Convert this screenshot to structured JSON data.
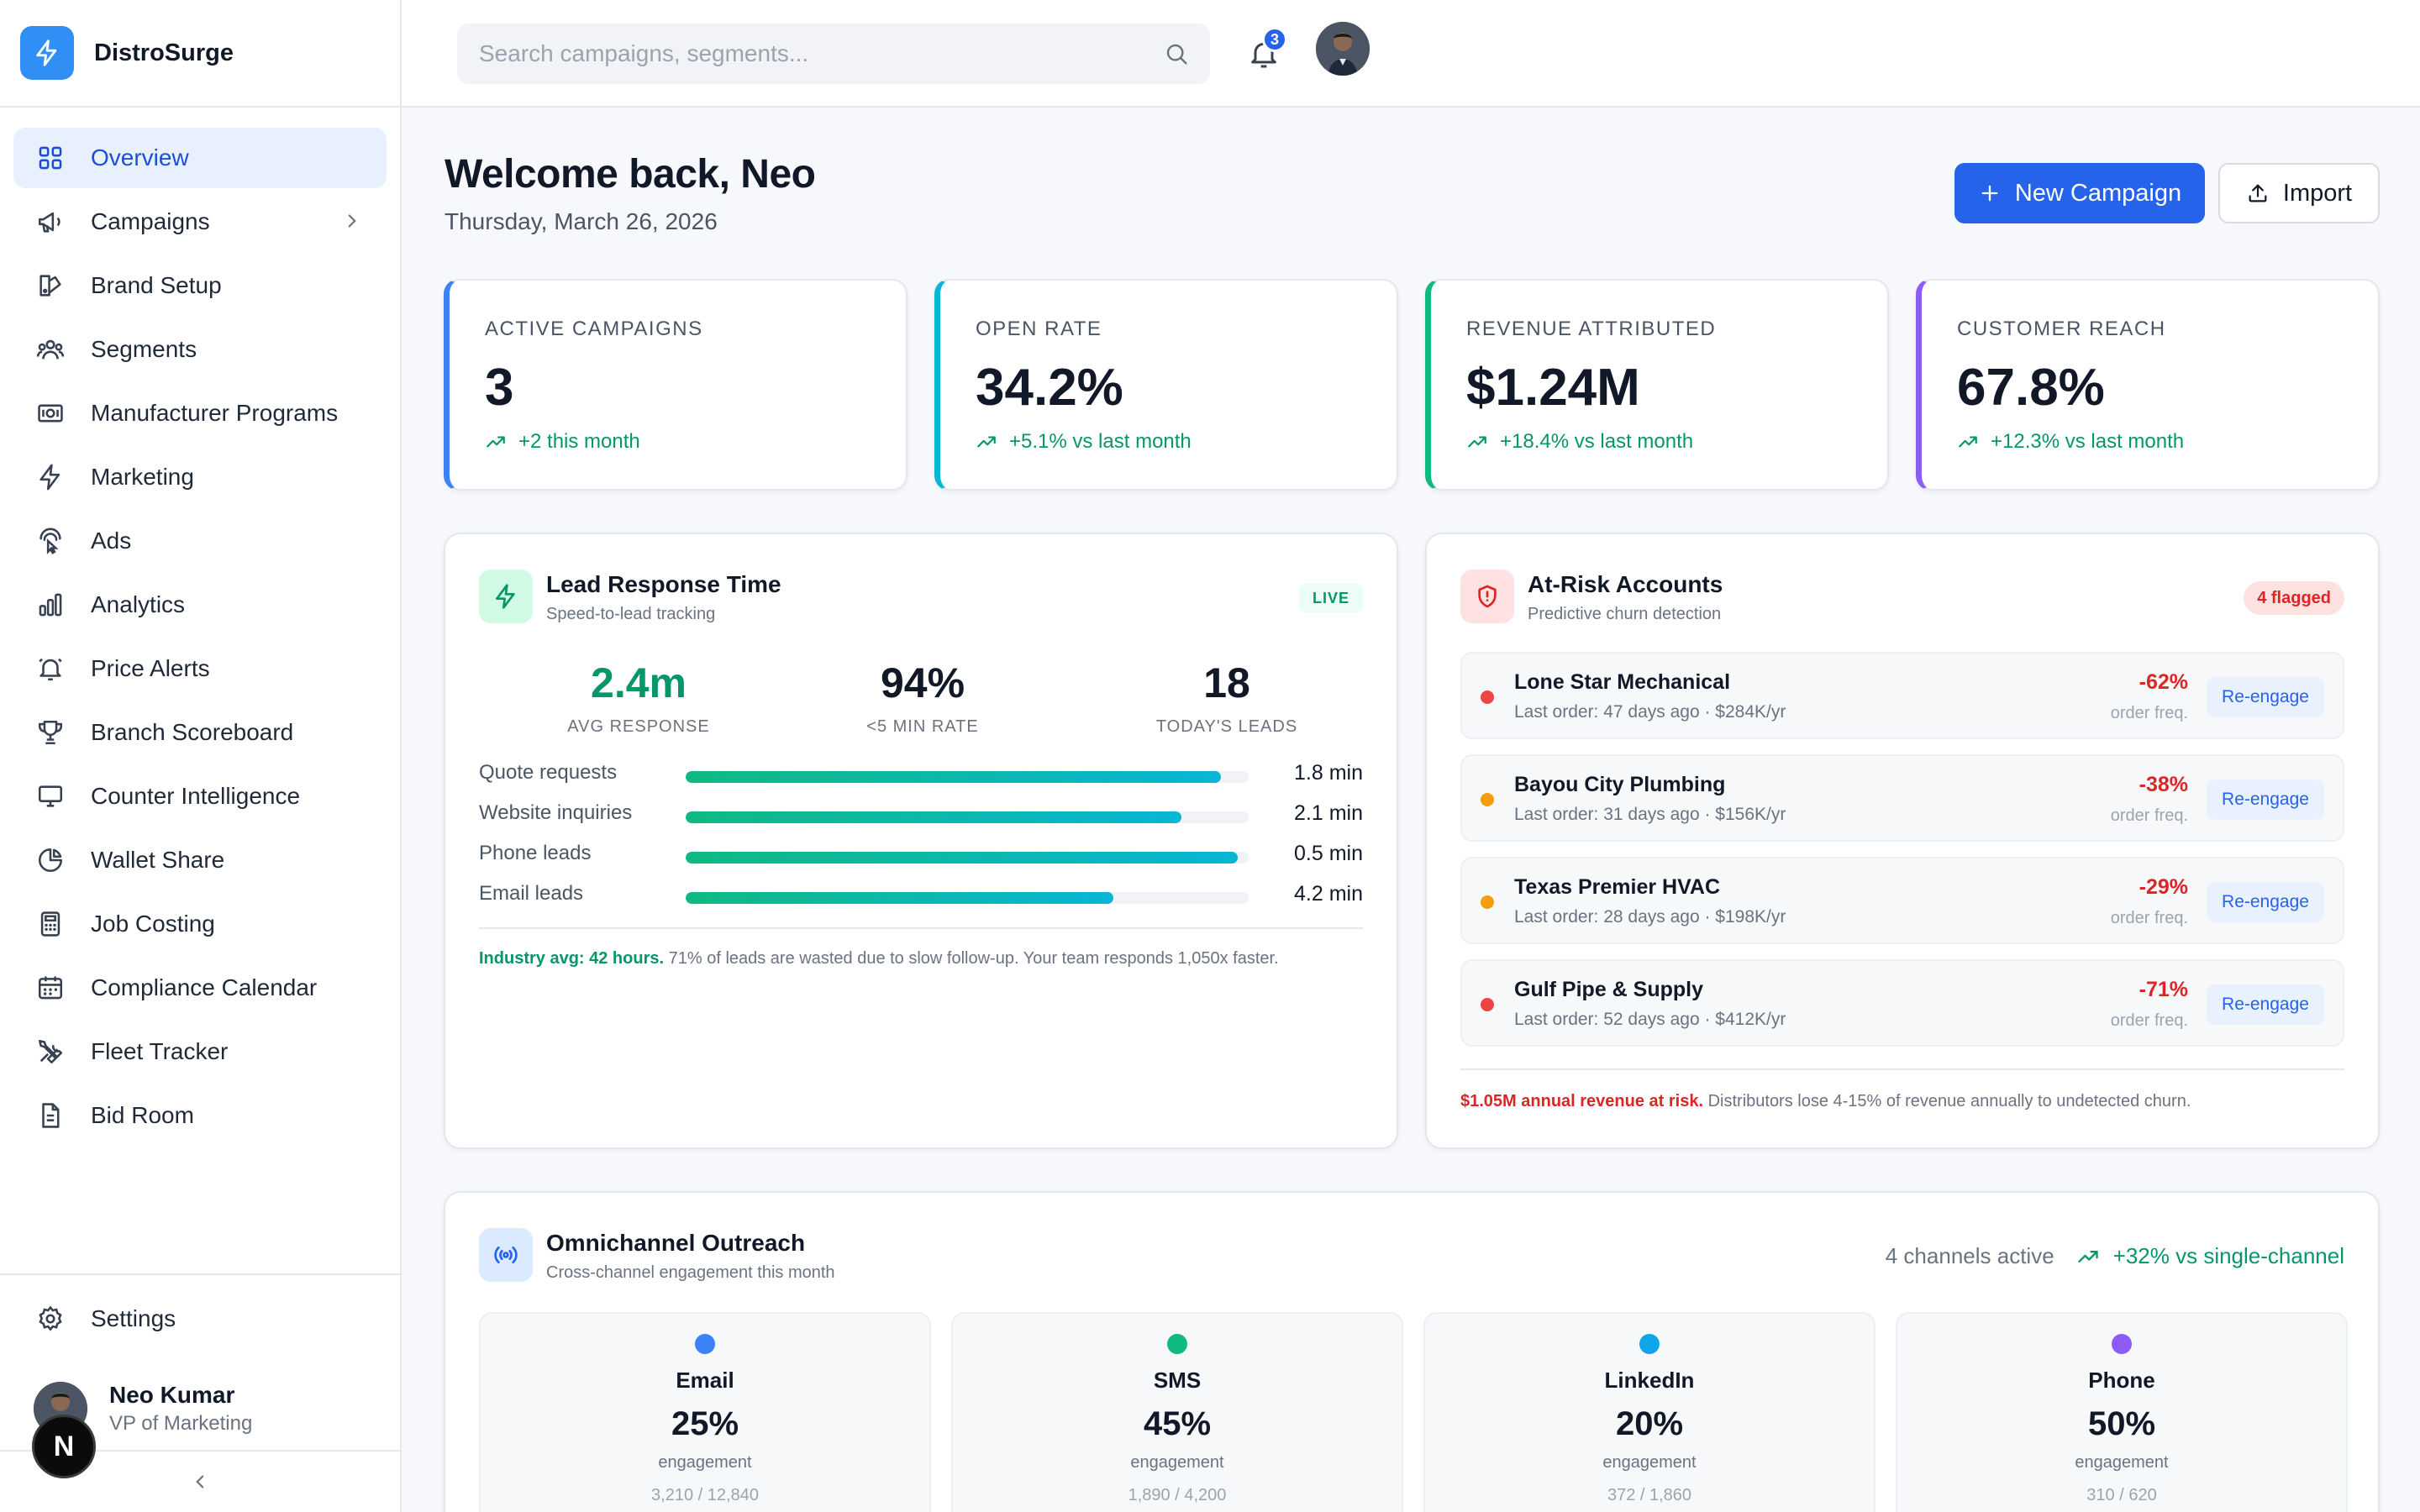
{
  "app": {
    "name": "DistroSurge"
  },
  "sidebar": {
    "items": [
      {
        "label": "Overview",
        "icon": "grid-icon",
        "active": true
      },
      {
        "label": "Campaigns",
        "icon": "megaphone-icon",
        "has_children": true
      },
      {
        "label": "Brand Setup",
        "icon": "palette-icon"
      },
      {
        "label": "Segments",
        "icon": "users-icon"
      },
      {
        "label": "Manufacturer Programs",
        "icon": "banknote-icon"
      },
      {
        "label": "Marketing",
        "icon": "bolt-icon"
      },
      {
        "label": "Ads",
        "icon": "pointer-icon"
      },
      {
        "label": "Analytics",
        "icon": "bar-chart-icon"
      },
      {
        "label": "Price Alerts",
        "icon": "bell-ring-icon"
      },
      {
        "label": "Branch Scoreboard",
        "icon": "trophy-icon"
      },
      {
        "label": "Counter Intelligence",
        "icon": "monitor-icon"
      },
      {
        "label": "Wallet Share",
        "icon": "pie-chart-icon"
      },
      {
        "label": "Job Costing",
        "icon": "calculator-icon"
      },
      {
        "label": "Compliance Calendar",
        "icon": "calendar-icon"
      },
      {
        "label": "Fleet Tracker",
        "icon": "tools-icon"
      },
      {
        "label": "Bid Room",
        "icon": "document-icon"
      }
    ],
    "settings_label": "Settings",
    "user": {
      "name": "Neo Kumar",
      "role": "VP of Marketing"
    },
    "badge_letter": "N"
  },
  "topbar": {
    "search_placeholder": "Search campaigns, segments...",
    "notification_count": "3"
  },
  "header": {
    "welcome": "Welcome back, Neo",
    "date": "Thursday, March 26, 2026",
    "new_campaign_label": "New Campaign",
    "import_label": "Import"
  },
  "stats": [
    {
      "label": "Active Campaigns",
      "value": "3",
      "trend": "+2 this month",
      "accent": "#3b82f6"
    },
    {
      "label": "Open Rate",
      "value": "34.2%",
      "trend": "+5.1% vs last month",
      "accent": "#06b6d4"
    },
    {
      "label": "Revenue Attributed",
      "value": "$1.24M",
      "trend": "+18.4% vs last month",
      "accent": "#10b981"
    },
    {
      "label": "Customer Reach",
      "value": "67.8%",
      "trend": "+12.3% vs last month",
      "accent": "#8b5cf6"
    }
  ],
  "lead_response": {
    "title": "Lead Response Time",
    "subtitle": "Speed-to-lead tracking",
    "badge": "LIVE",
    "metrics": [
      {
        "value": "2.4m",
        "label": "Avg Response"
      },
      {
        "value": "94%",
        "label": "<5 Min Rate"
      },
      {
        "value": "18",
        "label": "Today's Leads"
      }
    ],
    "bars": [
      {
        "label": "Quote requests",
        "value": "1.8 min",
        "fill": 0.95
      },
      {
        "label": "Website inquiries",
        "value": "2.1 min",
        "fill": 0.88
      },
      {
        "label": "Phone leads",
        "value": "0.5 min",
        "fill": 0.98
      },
      {
        "label": "Email leads",
        "value": "4.2 min",
        "fill": 0.76
      }
    ],
    "footer_highlight": "Industry avg: 42 hours.",
    "footer_text": " 71% of leads are wasted due to slow follow-up. Your team responds 1,050x faster."
  },
  "at_risk": {
    "title": "At-Risk Accounts",
    "subtitle": "Predictive churn detection",
    "badge": "4 flagged",
    "action_label": "Re-engage",
    "freq_label": "order freq.",
    "accounts": [
      {
        "name": "Lone Star Mechanical",
        "meta": "Last order: 47 days ago · $284K/yr",
        "change": "-62%",
        "dot": "#ef4444"
      },
      {
        "name": "Bayou City Plumbing",
        "meta": "Last order: 31 days ago · $156K/yr",
        "change": "-38%",
        "dot": "#f59e0b"
      },
      {
        "name": "Texas Premier HVAC",
        "meta": "Last order: 28 days ago · $198K/yr",
        "change": "-29%",
        "dot": "#f59e0b"
      },
      {
        "name": "Gulf Pipe & Supply",
        "meta": "Last order: 52 days ago · $412K/yr",
        "change": "-71%",
        "dot": "#ef4444"
      }
    ],
    "footer_highlight": "$1.05M annual revenue at risk.",
    "footer_text": " Distributors lose 4-15% of revenue annually to undetected churn."
  },
  "omnichannel": {
    "title": "Omnichannel Outreach",
    "subtitle": "Cross-channel engagement this month",
    "channels_active": "4 channels active",
    "lift": "+32% vs single-channel",
    "channels": [
      {
        "name": "Email",
        "pct": "25%",
        "label": "engagement",
        "count": "3,210 / 12,840",
        "dot": "#3b82f6"
      },
      {
        "name": "SMS",
        "pct": "45%",
        "label": "engagement",
        "count": "1,890 / 4,200",
        "dot": "#10b981"
      },
      {
        "name": "LinkedIn",
        "pct": "20%",
        "label": "engagement",
        "count": "372 / 1,860",
        "dot": "#0ea5e9"
      },
      {
        "name": "Phone",
        "pct": "50%",
        "label": "engagement",
        "count": "310 / 620",
        "dot": "#8b5cf6"
      }
    ]
  }
}
